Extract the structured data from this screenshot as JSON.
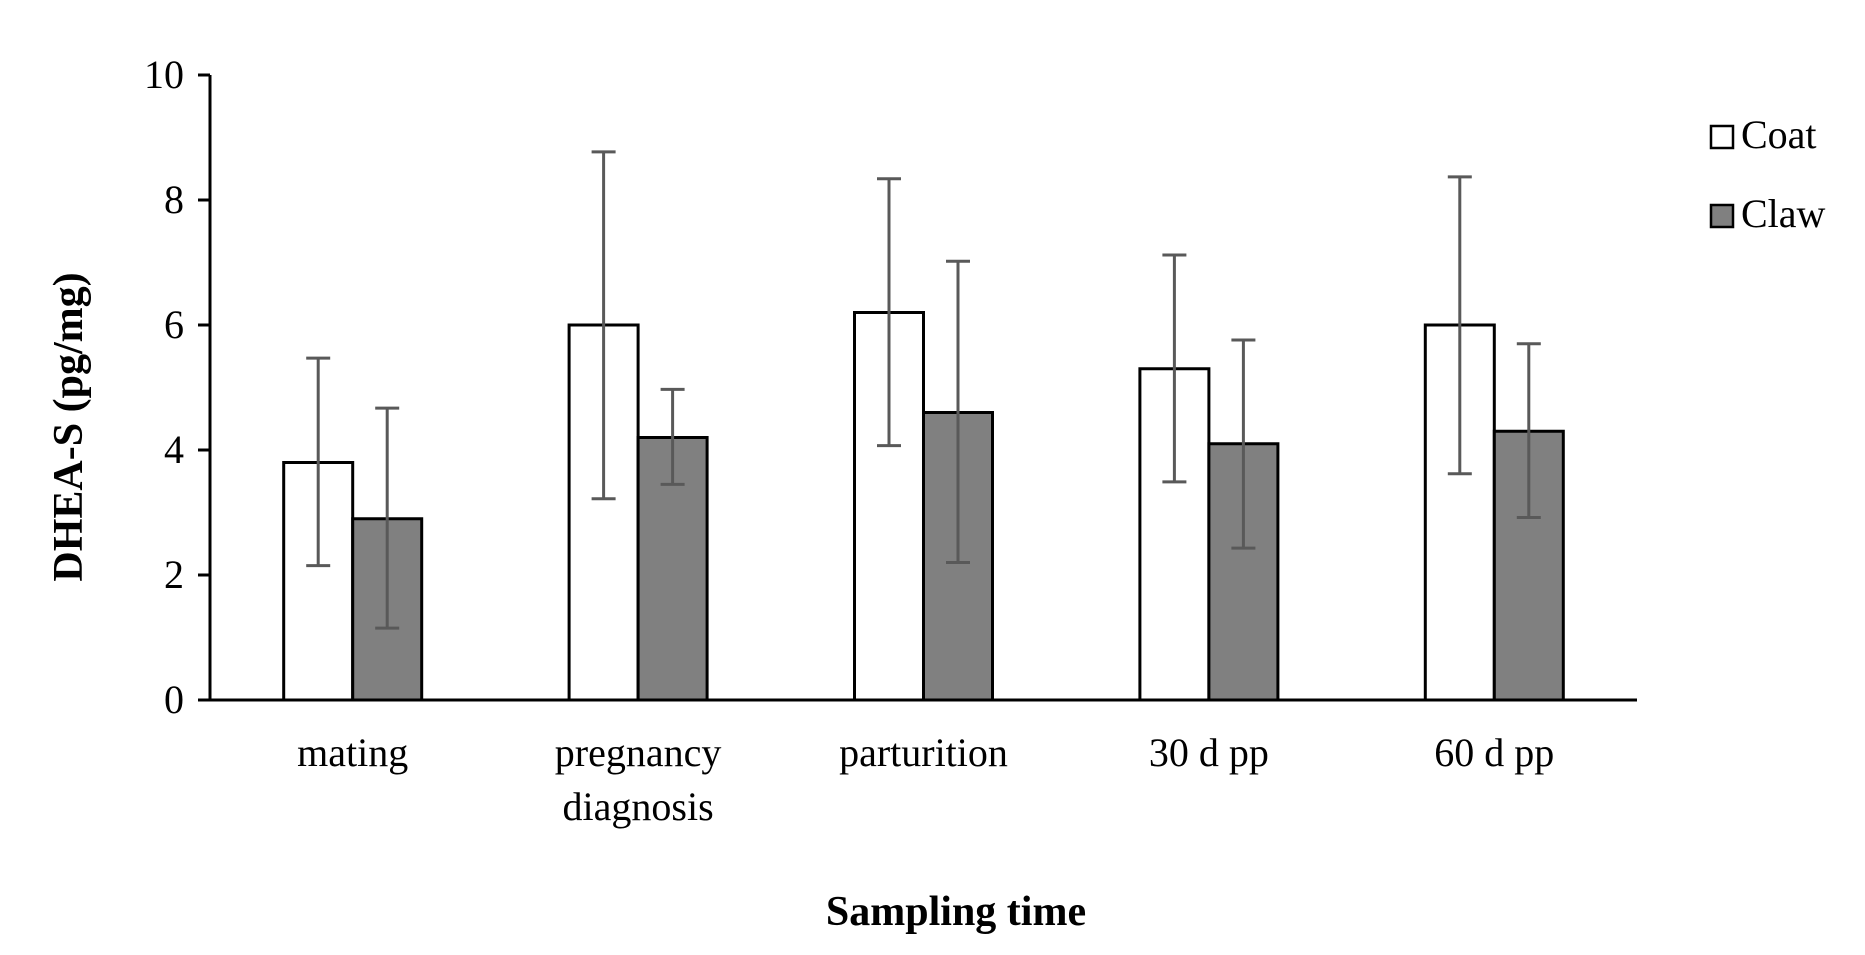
{
  "chart_data": {
    "type": "bar",
    "title": "",
    "xlabel": "Sampling time",
    "ylabel": "DHEA-S (pg/mg)",
    "ylim": [
      0,
      10
    ],
    "yticks": [
      0,
      2,
      4,
      6,
      8,
      10
    ],
    "yticklabels": [
      "0",
      "2",
      "4",
      "6",
      "8",
      "10"
    ],
    "grid": false,
    "legend_position": "top-right",
    "categories": [
      [
        "mating"
      ],
      [
        "pregnancy",
        "diagnosis"
      ],
      [
        "parturition"
      ],
      [
        "30  d pp"
      ],
      [
        "60  d pp"
      ]
    ],
    "series": [
      {
        "name": "Coat",
        "color": "#ffffff",
        "values": [
          3.8,
          6.0,
          6.2,
          5.3,
          6.0
        ],
        "error_low": [
          2.15,
          3.22,
          4.07,
          3.49,
          3.62
        ],
        "error_high": [
          5.47,
          8.77,
          8.34,
          7.12,
          8.37
        ]
      },
      {
        "name": "Claw",
        "color": "#808080",
        "values": [
          2.9,
          4.2,
          4.6,
          4.1,
          4.3
        ],
        "error_low": [
          1.15,
          3.45,
          2.2,
          2.43,
          2.92
        ],
        "error_high": [
          4.67,
          4.97,
          7.02,
          5.76,
          5.7
        ]
      }
    ],
    "error_bar_color": "#595959"
  }
}
